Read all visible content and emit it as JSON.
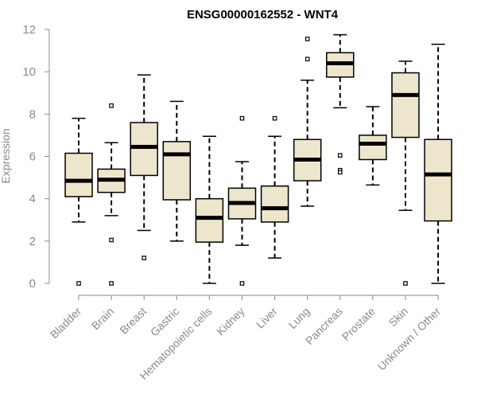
{
  "chart_data": {
    "type": "boxplot",
    "title": "ENSG00000162552 - WNT4",
    "xlabel": "",
    "ylabel": "Expression",
    "ylim": [
      0,
      12
    ],
    "yticks": [
      0,
      2,
      4,
      6,
      8,
      10,
      12
    ],
    "grid": false,
    "box_fill": "#ede5cc",
    "box_stroke": "#000000",
    "categories": [
      "Bladder",
      "Brain",
      "Breast",
      "Gastric",
      "Hematopoietic cells",
      "Kidney",
      "Liver",
      "Lung",
      "Pancreas",
      "Prostate",
      "Skin",
      "Unknown / Other"
    ],
    "boxes": [
      {
        "whisker_low": 2.9,
        "q1": 4.1,
        "median": 4.85,
        "q3": 6.15,
        "whisker_high": 7.8,
        "outliers": [
          0.0
        ]
      },
      {
        "whisker_low": 3.2,
        "q1": 4.3,
        "median": 4.9,
        "q3": 5.4,
        "whisker_high": 6.65,
        "outliers": [
          8.4,
          2.05,
          0.0
        ]
      },
      {
        "whisker_low": 2.5,
        "q1": 5.1,
        "median": 6.45,
        "q3": 7.6,
        "whisker_high": 9.85,
        "outliers": [
          1.2
        ]
      },
      {
        "whisker_low": 2.0,
        "q1": 3.95,
        "median": 6.1,
        "q3": 6.7,
        "whisker_high": 8.6,
        "outliers": []
      },
      {
        "whisker_low": 0.0,
        "q1": 1.95,
        "median": 3.1,
        "q3": 4.0,
        "whisker_high": 6.95,
        "outliers": []
      },
      {
        "whisker_low": 1.8,
        "q1": 3.05,
        "median": 3.8,
        "q3": 4.5,
        "whisker_high": 5.75,
        "outliers": [
          7.8,
          0.0
        ]
      },
      {
        "whisker_low": 1.2,
        "q1": 2.9,
        "median": 3.55,
        "q3": 4.6,
        "whisker_high": 6.95,
        "outliers": [
          7.8
        ]
      },
      {
        "whisker_low": 3.65,
        "q1": 4.85,
        "median": 5.85,
        "q3": 6.8,
        "whisker_high": 9.6,
        "outliers": [
          11.55,
          10.6
        ]
      },
      {
        "whisker_low": 8.3,
        "q1": 9.75,
        "median": 10.4,
        "q3": 10.9,
        "whisker_high": 11.75,
        "outliers": [
          6.05,
          5.35,
          5.25
        ]
      },
      {
        "whisker_low": 4.65,
        "q1": 5.85,
        "median": 6.6,
        "q3": 7.0,
        "whisker_high": 8.35,
        "outliers": []
      },
      {
        "whisker_low": 3.45,
        "q1": 6.9,
        "median": 8.9,
        "q3": 9.95,
        "whisker_high": 10.5,
        "outliers": [
          0.0
        ]
      },
      {
        "whisker_low": 0.0,
        "q1": 2.95,
        "median": 5.15,
        "q3": 6.8,
        "whisker_high": 11.3,
        "outliers": []
      }
    ]
  }
}
